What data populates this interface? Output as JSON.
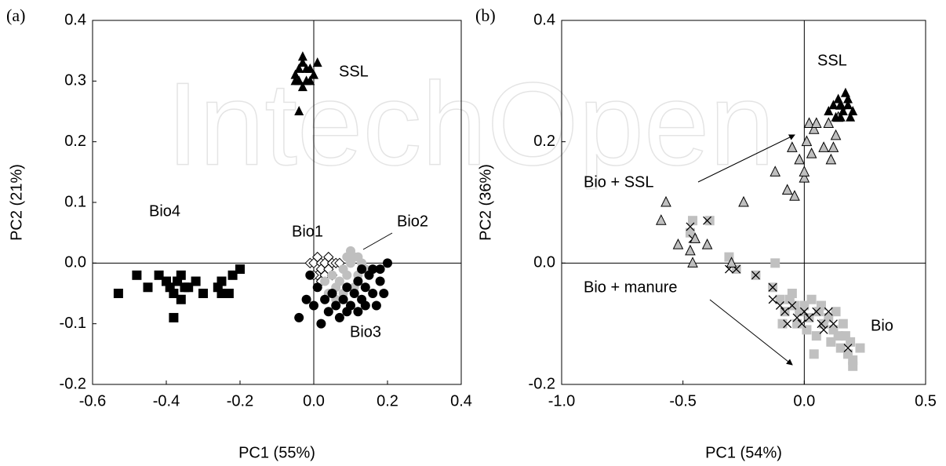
{
  "watermark": "IntechOpen",
  "chart_data": [
    {
      "type": "scatter",
      "panel_label": "(a)",
      "xlabel": "PC1 (55%)",
      "ylabel": "PC2 (21%)",
      "xlim": [
        -0.6,
        0.4
      ],
      "ylim": [
        -0.2,
        0.4
      ],
      "xticks": [
        -0.6,
        -0.4,
        -0.2,
        {
          "value": 0,
          "label": "0.0"
        },
        0.2,
        0.4
      ],
      "yticks": [
        -0.2,
        -0.1,
        {
          "value": 0,
          "label": "0.0"
        },
        0.1,
        0.2,
        0.3,
        0.4
      ],
      "zero_lines": true,
      "annotations": [
        "SSL",
        "Bio4",
        "Bio1",
        "Bio2",
        "Bio3"
      ],
      "series": [
        {
          "marker": "triangle",
          "color": "#000000",
          "stroke": "none",
          "x": [
            -0.05,
            -0.04,
            -0.03,
            -0.03,
            -0.02,
            -0.04,
            -0.05,
            -0.02,
            -0.01,
            0.01,
            0.0,
            -0.03,
            -0.04,
            -0.01
          ],
          "y": [
            0.31,
            0.32,
            0.33,
            0.34,
            0.32,
            0.3,
            0.3,
            0.3,
            0.32,
            0.33,
            0.31,
            0.29,
            0.25,
            0.3
          ]
        },
        {
          "marker": "square",
          "color": "#000000",
          "stroke": "none",
          "x": [
            -0.53,
            -0.48,
            -0.45,
            -0.42,
            -0.4,
            -0.38,
            -0.38,
            -0.37,
            -0.36,
            -0.36,
            -0.35,
            -0.34,
            -0.32,
            -0.3,
            -0.26,
            -0.25,
            -0.25,
            -0.23,
            -0.22,
            -0.2,
            -0.39
          ],
          "y": [
            -0.05,
            -0.02,
            -0.04,
            -0.02,
            -0.03,
            -0.09,
            -0.05,
            -0.03,
            -0.06,
            -0.02,
            -0.04,
            -0.04,
            -0.03,
            -0.05,
            -0.04,
            -0.05,
            -0.03,
            -0.05,
            -0.02,
            -0.01,
            -0.04
          ]
        },
        {
          "marker": "diamond",
          "color": "#ffffff",
          "stroke": "#000000",
          "x": [
            -0.01,
            0.0,
            0.01,
            0.01,
            0.02,
            0.02,
            0.03,
            0.03,
            0.04,
            0.04,
            0.05,
            0.05,
            0.06,
            0.07,
            0.0,
            0.02
          ],
          "y": [
            0.0,
            0.0,
            -0.02,
            0.01,
            0.0,
            -0.01,
            0.0,
            -0.02,
            0.01,
            -0.01,
            0.0,
            -0.02,
            0.0,
            0.0,
            -0.02,
            -0.03
          ]
        },
        {
          "marker": "circle",
          "color": "#bfbfbf",
          "stroke": "none",
          "x": [
            0.03,
            0.04,
            0.05,
            0.06,
            0.07,
            0.08,
            0.09,
            0.1,
            0.1,
            0.11,
            0.12,
            0.13,
            0.14,
            0.08,
            0.06,
            0.11,
            0.09,
            0.12
          ],
          "y": [
            -0.03,
            -0.05,
            -0.02,
            -0.04,
            -0.03,
            -0.01,
            -0.02,
            0.0,
            0.02,
            0.01,
            -0.02,
            0.0,
            -0.01,
            -0.05,
            -0.06,
            -0.04,
            0.01,
            0.01
          ]
        },
        {
          "marker": "circle",
          "color": "#000000",
          "stroke": "none",
          "x": [
            -0.04,
            -0.02,
            0.0,
            0.01,
            0.02,
            0.03,
            0.04,
            0.05,
            0.06,
            0.08,
            0.09,
            0.1,
            0.11,
            0.12,
            0.12,
            0.13,
            0.14,
            0.15,
            0.16,
            0.17,
            0.18,
            0.19,
            0.2,
            0.18,
            0.16,
            0.07,
            0.09,
            0.14,
            -0.01,
            0.13
          ],
          "y": [
            -0.09,
            -0.06,
            -0.07,
            -0.04,
            -0.1,
            -0.06,
            -0.08,
            -0.05,
            -0.07,
            -0.06,
            -0.04,
            -0.07,
            -0.05,
            -0.08,
            -0.03,
            -0.06,
            -0.04,
            -0.02,
            -0.05,
            -0.07,
            -0.03,
            -0.05,
            0.0,
            -0.01,
            -0.01,
            -0.09,
            -0.08,
            -0.07,
            -0.02,
            -0.01
          ]
        }
      ]
    },
    {
      "type": "scatter",
      "panel_label": "(b)",
      "xlabel": "PC1 (54%)",
      "ylabel": "PC2 (36%)",
      "xlim": [
        -1.0,
        0.5
      ],
      "ylim": [
        -0.2,
        0.4
      ],
      "xticks": [
        {
          "value": -1,
          "label": "-1.0"
        },
        -0.5,
        {
          "value": 0,
          "label": "0.0"
        },
        0.5
      ],
      "yticks": [
        -0.2,
        {
          "value": 0,
          "label": "0.0"
        },
        0.2,
        0.4
      ],
      "zero_lines": true,
      "annotations": [
        "SSL",
        "Bio + SSL",
        "Bio + manure",
        "Bio"
      ],
      "series": [
        {
          "marker": "square",
          "color": "#c0c0c0",
          "stroke": "none",
          "x": [
            -0.47,
            -0.46,
            -0.39,
            -0.31,
            -0.28,
            -0.2,
            -0.13,
            -0.12,
            -0.1,
            -0.08,
            -0.06,
            -0.05,
            -0.04,
            -0.03,
            -0.02,
            0.0,
            0.01,
            0.02,
            0.03,
            0.05,
            0.06,
            0.08,
            0.1,
            0.11,
            0.12,
            0.13,
            0.14,
            0.15,
            0.16,
            0.18,
            0.2,
            0.23,
            0.17,
            0.19,
            0.04,
            -0.09,
            0.07,
            0.2
          ],
          "y": [
            0.05,
            0.07,
            0.07,
            0.01,
            -0.01,
            -0.02,
            -0.04,
            0.0,
            -0.06,
            -0.08,
            -0.06,
            -0.05,
            -0.07,
            -0.1,
            -0.08,
            -0.07,
            -0.11,
            -0.09,
            -0.06,
            -0.12,
            -0.08,
            -0.1,
            -0.09,
            -0.13,
            -0.11,
            -0.08,
            -0.12,
            -0.14,
            -0.1,
            -0.15,
            -0.16,
            -0.14,
            -0.12,
            -0.13,
            -0.15,
            -0.1,
            -0.07,
            -0.17
          ]
        },
        {
          "marker": "cross",
          "color": "#000000",
          "stroke": "#000000",
          "x": [
            -0.47,
            -0.46,
            -0.4,
            -0.31,
            -0.28,
            -0.2,
            -0.13,
            -0.13,
            -0.1,
            -0.08,
            -0.07,
            -0.05,
            -0.03,
            -0.01,
            0.0,
            0.02,
            0.05,
            0.07,
            0.1,
            0.12,
            0.18,
            0.08
          ],
          "y": [
            0.06,
            0.04,
            0.07,
            -0.01,
            -0.01,
            -0.02,
            -0.04,
            -0.06,
            -0.07,
            -0.08,
            -0.1,
            -0.07,
            -0.09,
            -0.1,
            -0.08,
            -0.09,
            -0.08,
            -0.1,
            -0.08,
            -0.1,
            -0.14,
            -0.11
          ]
        },
        {
          "marker": "triangle",
          "color": "#bfbfbf",
          "stroke": "#000000",
          "x": [
            -0.59,
            -0.57,
            -0.52,
            -0.47,
            -0.46,
            -0.45,
            -0.4,
            -0.3,
            -0.25,
            -0.12,
            -0.07,
            -0.05,
            -0.04,
            -0.02,
            0.0,
            0.01,
            0.02,
            0.03,
            0.04,
            0.05,
            0.08,
            0.1,
            0.11,
            0.12,
            0.13,
            0.14,
            0.15,
            0.0
          ],
          "y": [
            0.07,
            0.1,
            0.03,
            0.02,
            0.0,
            0.04,
            0.03,
            0.0,
            0.1,
            0.15,
            0.12,
            0.19,
            0.11,
            0.17,
            0.14,
            0.2,
            0.23,
            0.18,
            0.22,
            0.23,
            0.19,
            0.23,
            0.17,
            0.19,
            0.21,
            0.24,
            0.26,
            0.15
          ]
        },
        {
          "marker": "triangle",
          "color": "#000000",
          "stroke": "none",
          "x": [
            0.1,
            0.12,
            0.13,
            0.14,
            0.15,
            0.16,
            0.17,
            0.18,
            0.19,
            0.2,
            0.15,
            0.18
          ],
          "y": [
            0.25,
            0.26,
            0.24,
            0.27,
            0.26,
            0.25,
            0.28,
            0.26,
            0.24,
            0.25,
            0.24,
            0.27
          ]
        }
      ]
    }
  ]
}
